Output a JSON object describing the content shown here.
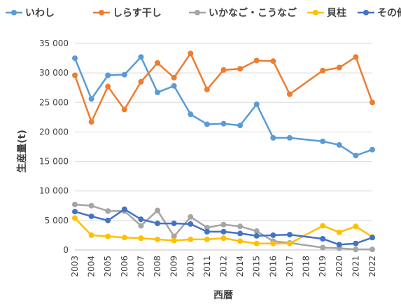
{
  "chart_data": {
    "type": "line",
    "xlabel": "西暦",
    "ylabel": "生産量(t)",
    "ylim": [
      0,
      35000
    ],
    "yticks": [
      0,
      5000,
      10000,
      15000,
      20000,
      25000,
      30000,
      35000
    ],
    "ytick_labels": [
      "0",
      "5 000",
      "10 000",
      "15 000",
      "20 000",
      "25 000",
      "30 000",
      "35 000"
    ],
    "categories": [
      "2003",
      "2004",
      "2005",
      "2006",
      "2007",
      "2008",
      "2009",
      "2010",
      "2011",
      "2012",
      "2014",
      "2015",
      "2016",
      "2017",
      "2018",
      "2019",
      "2020",
      "2021",
      "2022"
    ],
    "grid": "horizontal",
    "legend_position": "top",
    "series": [
      {
        "name": "いわし",
        "color": "#5B9BD5",
        "values": [
          32500,
          25600,
          29600,
          29700,
          32700,
          26700,
          27800,
          23000,
          21300,
          21400,
          21100,
          24700,
          19000,
          19000,
          null,
          18400,
          17800,
          16000,
          17000
        ]
      },
      {
        "name": "しらす干し",
        "color": "#ED7D31",
        "values": [
          29600,
          21700,
          27700,
          23800,
          28500,
          31700,
          29200,
          33300,
          27200,
          30500,
          30700,
          32100,
          32000,
          26400,
          null,
          30400,
          30900,
          32700,
          25000
        ]
      },
      {
        "name": "いかなご・こうなご",
        "color": "#A5A5A5",
        "values": [
          7700,
          7500,
          6600,
          6600,
          4100,
          6700,
          2300,
          5600,
          3800,
          4300,
          4000,
          3200,
          1500,
          1200,
          null,
          400,
          300,
          100,
          100
        ]
      },
      {
        "name": "貝柱",
        "color": "#FFC000",
        "values": [
          5400,
          2500,
          2300,
          2100,
          2000,
          1800,
          1600,
          1800,
          1800,
          2000,
          1500,
          1100,
          1100,
          1100,
          null,
          4100,
          3000,
          4000,
          2200
        ]
      },
      {
        "name": "その他",
        "color": "#4472C4",
        "values": [
          6500,
          5700,
          5000,
          6900,
          5200,
          4500,
          4500,
          4400,
          3100,
          3100,
          2800,
          2400,
          2500,
          2600,
          null,
          1900,
          900,
          1100,
          2100
        ]
      }
    ]
  }
}
